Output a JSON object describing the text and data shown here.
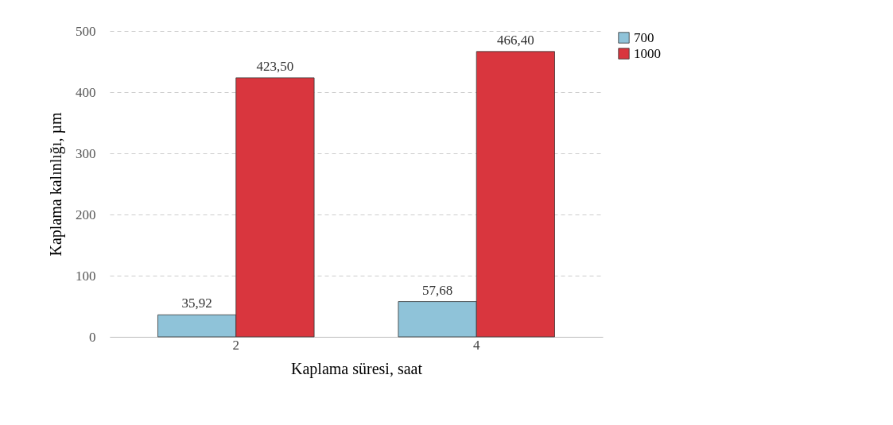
{
  "chart_data": {
    "type": "bar",
    "xlabel": "Kaplama süresi, saat",
    "ylabel": "Kaplama kalınlığı, µm",
    "categories": [
      "2",
      "4"
    ],
    "series": [
      {
        "name": "700",
        "color": "#8fc3d9",
        "values": [
          35.92,
          57.68
        ],
        "value_labels": [
          "35,92",
          "57,68"
        ]
      },
      {
        "name": "1000",
        "color": "#d9363e",
        "values": [
          423.5,
          466.4
        ],
        "value_labels": [
          "423,50",
          "466,40"
        ]
      }
    ],
    "ylim": [
      0,
      500
    ],
    "yticks": [
      0,
      100,
      200,
      300,
      400,
      500
    ],
    "grid": "y",
    "legend": "right"
  }
}
